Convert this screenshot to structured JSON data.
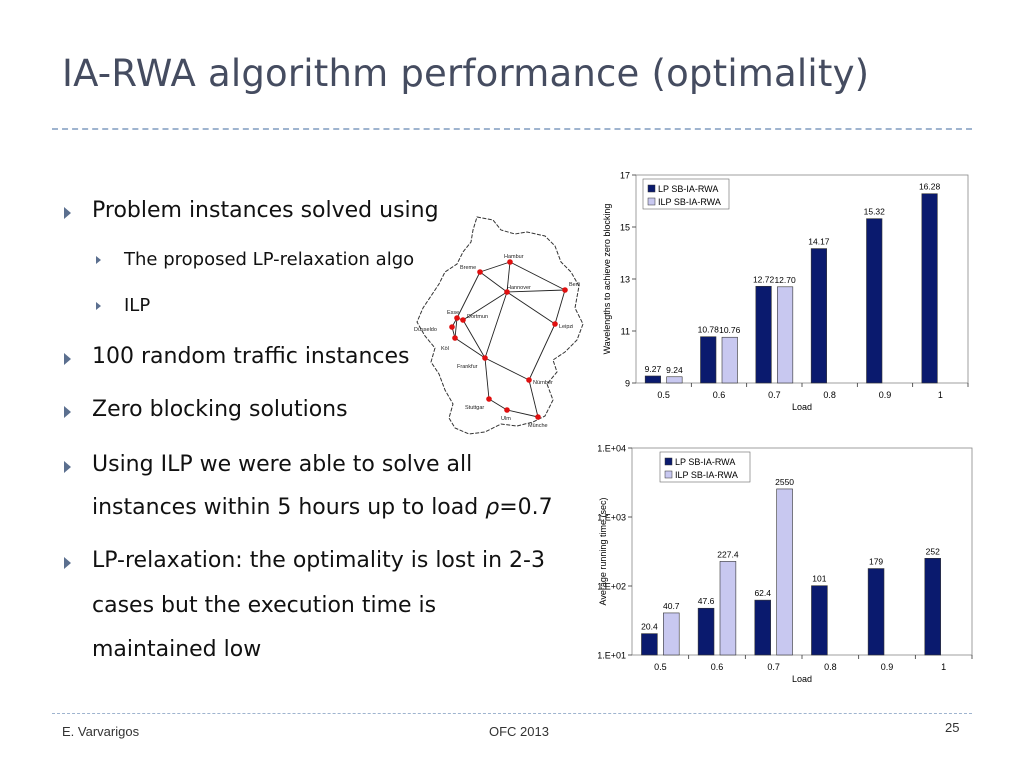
{
  "slide": {
    "title": "IA-RWA algorithm performance (optimality)",
    "bullets": [
      "Problem instances solved using",
      "The proposed LP-relaxation algo",
      "ILP",
      "100 random traffic instances",
      "Zero blocking solutions",
      "Using ILP we were able to solve all",
      "instances within 5 hours up to load ",
      "ρ",
      "=0.7",
      "LP-relaxation: the optimality is lost in 2-3",
      "cases but the execution time is",
      "maintained low"
    ]
  },
  "map": {
    "cities": [
      "Hambur",
      "Breme",
      "Berli",
      "Hannover",
      "Esse",
      "Dortmun",
      "Düsseldo",
      "Köl",
      "Leipzi",
      "Frankfur",
      "Nürnber",
      "Stuttgar",
      "Ulm",
      "Münche"
    ]
  },
  "footer": {
    "author": "E. Varvarigos",
    "conference": "OFC 2013",
    "page": "25"
  },
  "colors": {
    "title": "#454c60",
    "bullet_arrow": "#5b6f8f",
    "dashed_rule": "#9fb4cf",
    "series_lp": "#0a1a6e",
    "series_ilp": "#c8c8f0",
    "map_node": "#e01010"
  },
  "chart_data": [
    {
      "type": "bar",
      "categories": [
        "0.5",
        "0.6",
        "0.7",
        "0.8",
        "0.9",
        "1"
      ],
      "series": [
        {
          "name": "LP SB-IA-RWA",
          "values": [
            9.27,
            10.78,
            12.72,
            14.17,
            15.32,
            16.28
          ],
          "labels": [
            "9.27",
            "10.78",
            "12.72",
            "14.17",
            "15.32",
            "16.28"
          ]
        },
        {
          "name": "ILP SB-IA-RWA",
          "values": [
            9.24,
            10.76,
            12.7,
            null,
            null,
            null
          ],
          "labels": [
            "9.24",
            "10.76",
            "12.70",
            "",
            "",
            ""
          ]
        }
      ],
      "xlabel": "Load",
      "ylabel": "Wavelengths to achieve zero blocking",
      "ylim": [
        9,
        17
      ],
      "yticks": [
        "9",
        "11",
        "13",
        "15",
        "17"
      ],
      "log": false,
      "legend": "top-left"
    },
    {
      "type": "bar",
      "categories": [
        "0.5",
        "0.6",
        "0.7",
        "0.8",
        "0.9",
        "1"
      ],
      "series": [
        {
          "name": "LP SB-IA-RWA",
          "values": [
            20.4,
            47.6,
            62.4,
            101,
            179,
            252
          ],
          "labels": [
            "20.4",
            "47.6",
            "62.4",
            "101",
            "179",
            "252"
          ]
        },
        {
          "name": "ILP SB-IA-RWA",
          "values": [
            40.7,
            227.4,
            2550,
            null,
            null,
            null
          ],
          "labels": [
            "40.7",
            "227.4",
            "2550",
            "",
            "",
            ""
          ]
        }
      ],
      "xlabel": "Load",
      "ylabel": "Average running time (sec)",
      "ylim": [
        10,
        10000
      ],
      "yticks": [
        "1.E+01",
        "1.E+02",
        "1.E+03",
        "1.E+04"
      ],
      "log": true,
      "legend": "top-left"
    }
  ]
}
